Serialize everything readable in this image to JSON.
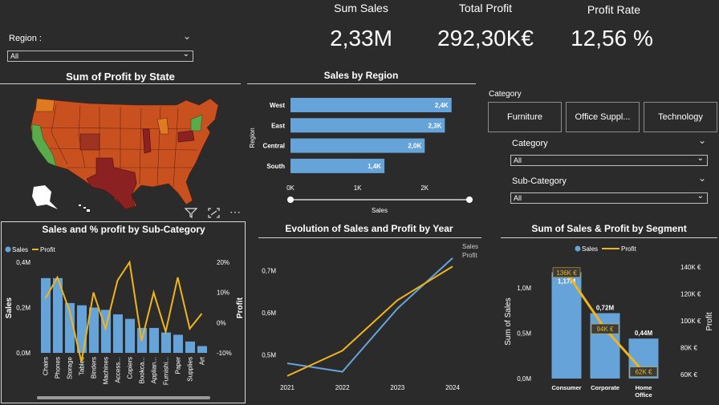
{
  "kpis": {
    "sum_sales": {
      "label": "Sum Sales",
      "value": "2,33M"
    },
    "total_profit": {
      "label": "Total Profit",
      "value": "292,30K€"
    },
    "profit_rate": {
      "label": "Profit Rate",
      "value": "12,56 %"
    }
  },
  "region_slicer": {
    "label": "Region :",
    "value": "All"
  },
  "category_buttons": {
    "label": "Category",
    "items": [
      "Furniture",
      "Office Suppl...",
      "Technology"
    ]
  },
  "category_slicer": {
    "label": "Category",
    "value": "All"
  },
  "subcategory_slicer": {
    "label": "Sub-Category",
    "value": "All"
  },
  "map": {
    "title": "Sum of Profit by State"
  },
  "colors": {
    "bar_blue": "#66a3d8",
    "profit_line": "#f0b51e",
    "map_orange": "#c8511f",
    "map_dark": "#8b2121",
    "map_green": "#5cab4a"
  },
  "icons": [
    "filter-icon",
    "expand-icon",
    "more-options-icon"
  ],
  "chart_data": [
    {
      "id": "sales_by_region",
      "type": "bar",
      "title": "Sales by Region",
      "xlabel": "Sales",
      "ylabel": "Region",
      "categories": [
        "West",
        "East",
        "Central",
        "South"
      ],
      "values": [
        2.4,
        2.3,
        2.0,
        1.4
      ],
      "value_labels": [
        "2,4K",
        "2,3K",
        "2,0K",
        "1,4K"
      ],
      "x_ticks": [
        "0K",
        "1K",
        "2K"
      ],
      "xlim": [
        0,
        2.75
      ]
    },
    {
      "id": "sales_profit_subcategory",
      "type": "bar",
      "title": "Sales and % profit by Sub-Category",
      "legend": [
        "Sales",
        "Profit"
      ],
      "ylabel": "Sales",
      "y2label": "Profit",
      "categories": [
        "Chairs",
        "Phones",
        "Storage",
        "Tables",
        "Binders",
        "Machines",
        "Access...",
        "Copiers",
        "Bookca...",
        "Applian...",
        "Furnishi...",
        "Paper",
        "Supplies",
        "Art"
      ],
      "sales": [
        0.33,
        0.33,
        0.22,
        0.21,
        0.2,
        0.19,
        0.17,
        0.15,
        0.11,
        0.11,
        0.09,
        0.08,
        0.05,
        0.03
      ],
      "profit_pct": [
        8,
        15,
        4,
        -13,
        10,
        -2,
        14,
        20,
        -6,
        10,
        -3,
        15,
        -2,
        3
      ],
      "y_ticks": [
        "0,0M",
        "0,2M",
        "0,4M"
      ],
      "ylim": [
        0,
        0.4
      ],
      "y2_ticks": [
        "-10%",
        "0%",
        "10%",
        "20%"
      ],
      "y2lim": [
        -10,
        20
      ]
    },
    {
      "id": "evolution_by_year",
      "type": "line",
      "title": "Evolution of Sales and Profit by Year",
      "x": [
        "2021",
        "2022",
        "2023",
        "2024"
      ],
      "series": [
        {
          "name": "Sales",
          "values": [
            0.48,
            0.46,
            0.61,
            0.73
          ]
        },
        {
          "name": "Profit",
          "values": [
            0.45,
            0.51,
            0.63,
            0.71
          ]
        }
      ],
      "y_ticks": [
        "0,5M",
        "0,6M",
        "0,7M"
      ],
      "ylim": [
        0.44,
        0.76
      ]
    },
    {
      "id": "sales_profit_segment",
      "type": "bar",
      "title": "Sum of Sales & Profit by Segment",
      "legend": [
        "Sales",
        "Profit"
      ],
      "ylabel": "Sum of Sales",
      "y2label": "Profit",
      "categories": [
        "Consumer",
        "Corporate",
        "Home Office"
      ],
      "sales": [
        1.17,
        0.72,
        0.44
      ],
      "sales_labels": [
        "1,17M",
        "0,72M",
        "0,44M"
      ],
      "profit": [
        136,
        94,
        62
      ],
      "profit_labels": [
        "136K €",
        "94K €",
        "62K €"
      ],
      "y_ticks": [
        "0,0M",
        "0,5M",
        "1,0M"
      ],
      "ylim": [
        0,
        1.36
      ],
      "y2_ticks": [
        "60K €",
        "80K €",
        "100K €",
        "120K €",
        "140K €"
      ],
      "y2lim": [
        57,
        149
      ]
    }
  ]
}
